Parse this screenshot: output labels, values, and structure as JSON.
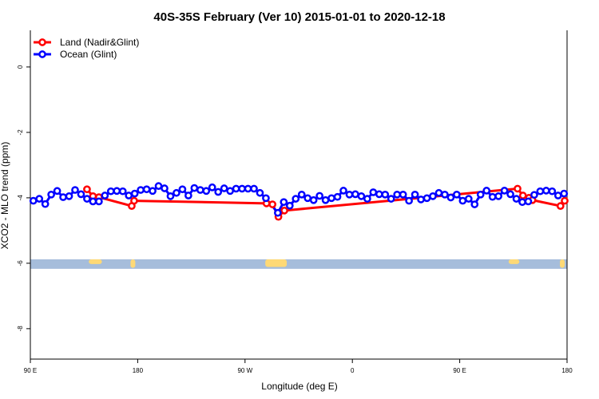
{
  "chart_data": {
    "type": "line",
    "title": "40S-35S February (Ver 10)   2015-01-01 to 2020-12-18",
    "xlabel": "Longitude (deg E)",
    "ylabel": "XCO2 - MLO trend (ppm)",
    "xlim": [
      90,
      540
    ],
    "ylim": [
      -8.93,
      1.12
    ],
    "x_ticks": [
      {
        "value": 90,
        "label": "90 E"
      },
      {
        "value": 180,
        "label": "180"
      },
      {
        "value": 270,
        "label": "90 W"
      },
      {
        "value": 360,
        "label": "0"
      },
      {
        "value": 450,
        "label": "90 E"
      },
      {
        "value": 540,
        "label": "180"
      }
    ],
    "y_ticks": [
      {
        "value": 0,
        "label": "0"
      },
      {
        "value": -2,
        "label": "-2"
      },
      {
        "value": -4,
        "label": "-4"
      },
      {
        "value": -6,
        "label": "-6"
      },
      {
        "value": -8,
        "label": "-8"
      }
    ],
    "grid": false,
    "legend_position": "top-left",
    "series": [
      {
        "name": "Land (Nadir&Glint)",
        "color": "#ff0000",
        "x": [
          137.5,
          142.5,
          147.5,
          175,
          177,
          288,
          293,
          298,
          303,
          498.5,
          503,
          508,
          511,
          534.5,
          538
        ],
        "y": [
          -3.74,
          -3.95,
          -3.98,
          -4.25,
          -4.09,
          -4.17,
          -4.2,
          -4.58,
          -4.39,
          -3.72,
          -3.93,
          -4.0,
          -4.07,
          -4.25,
          -4.09
        ]
      },
      {
        "name": "Ocean (Glint)",
        "color": "#0000ff",
        "x": [
          92.5,
          97.5,
          102.5,
          107.5,
          112.5,
          117.5,
          122.5,
          127.5,
          132.5,
          137.5,
          142.5,
          147.5,
          152.5,
          157.5,
          162.5,
          167.5,
          172.5,
          177.5,
          182.5,
          187.5,
          192.5,
          197.5,
          202.5,
          207.5,
          212.5,
          217.5,
          222.5,
          227.5,
          232.5,
          237.5,
          242.5,
          247.5,
          252.5,
          257.5,
          262.5,
          267.5,
          272.5,
          277.5,
          282.5,
          287.5,
          297.5,
          302.5,
          307.5,
          312.5,
          317.5,
          322.5,
          327.5,
          332.5,
          337.5,
          342.5,
          347.5,
          352.5,
          357.5,
          362.5,
          367.5,
          372.5,
          377.5,
          382.5,
          387.5,
          392.5,
          397.5,
          402.5,
          407.5,
          412.5,
          417.5,
          422.5,
          427.5,
          432.5,
          437.5,
          442.5,
          447.5,
          452.5,
          457.5,
          462.5,
          467.5,
          472.5,
          477.5,
          482.5,
          487.5,
          492.5,
          497.5,
          502.5,
          507.5,
          512.5,
          517.5,
          522.5,
          527.5,
          532.5,
          537.5
        ],
        "y": [
          -4.09,
          -4.03,
          -4.19,
          -3.9,
          -3.79,
          -3.98,
          -3.95,
          -3.76,
          -3.89,
          -4.03,
          -4.11,
          -4.11,
          -3.93,
          -3.8,
          -3.79,
          -3.8,
          -3.93,
          -3.87,
          -3.76,
          -3.74,
          -3.79,
          -3.64,
          -3.71,
          -3.95,
          -3.85,
          -3.74,
          -3.93,
          -3.7,
          -3.76,
          -3.79,
          -3.68,
          -3.82,
          -3.71,
          -3.79,
          -3.72,
          -3.72,
          -3.72,
          -3.72,
          -3.85,
          -4.01,
          -4.46,
          -4.13,
          -4.24,
          -4.03,
          -3.9,
          -4.01,
          -4.07,
          -3.94,
          -4.07,
          -4.01,
          -3.97,
          -3.78,
          -3.9,
          -3.89,
          -3.95,
          -4.03,
          -3.83,
          -3.89,
          -3.9,
          -4.03,
          -3.9,
          -3.9,
          -4.09,
          -3.9,
          -4.05,
          -4.01,
          -3.95,
          -3.85,
          -3.9,
          -3.99,
          -3.9,
          -4.09,
          -4.03,
          -4.2,
          -3.9,
          -3.78,
          -3.97,
          -3.95,
          -3.78,
          -3.89,
          -4.03,
          -4.13,
          -4.11,
          -3.91,
          -3.8,
          -3.78,
          -3.8,
          -3.93,
          -3.87
        ]
      }
    ],
    "land_mask": {
      "ocean_color": "#a6bddb",
      "land_color": "#fed976"
    }
  }
}
